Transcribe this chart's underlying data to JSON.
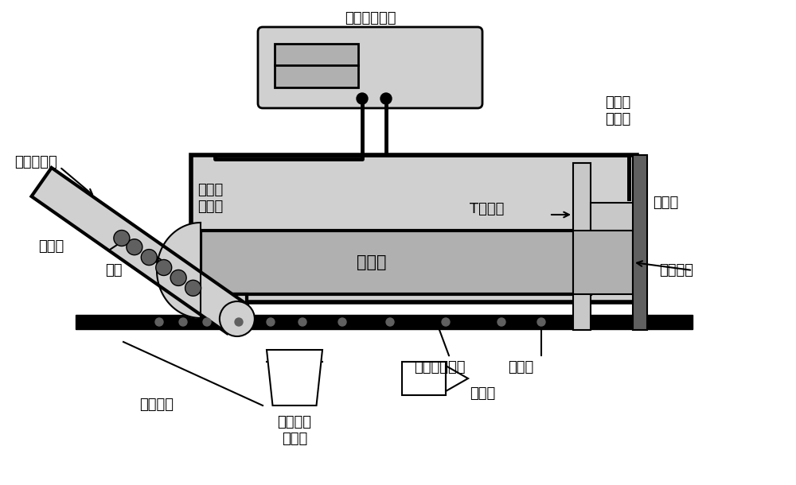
{
  "bg_color": "#ffffff",
  "light_gray": "#c8c8c8",
  "mid_gray": "#b0b0b0",
  "dark_gray": "#606060",
  "dotted_fill": "#d0d0d0",
  "black": "#000000",
  "labels": {
    "impedance_module": "阻抗测量模块",
    "first_electrode": "第一测\n量电极",
    "second_electrode": "第二测\n量电极",
    "t_tube": "T型导管",
    "negative_source": "负压源",
    "negative_channel": "负压通道",
    "carrier": "承载体",
    "cell_recovery": "细胞回收通道",
    "glass_sheet": "玻璃片",
    "compression_channel": "压缩通道",
    "capillary": "毛细管",
    "cell": "细胞",
    "connect_pump": "连接注射泵",
    "bio_microscope": "生物倒置\n显微镜",
    "camera": "摄像头"
  }
}
